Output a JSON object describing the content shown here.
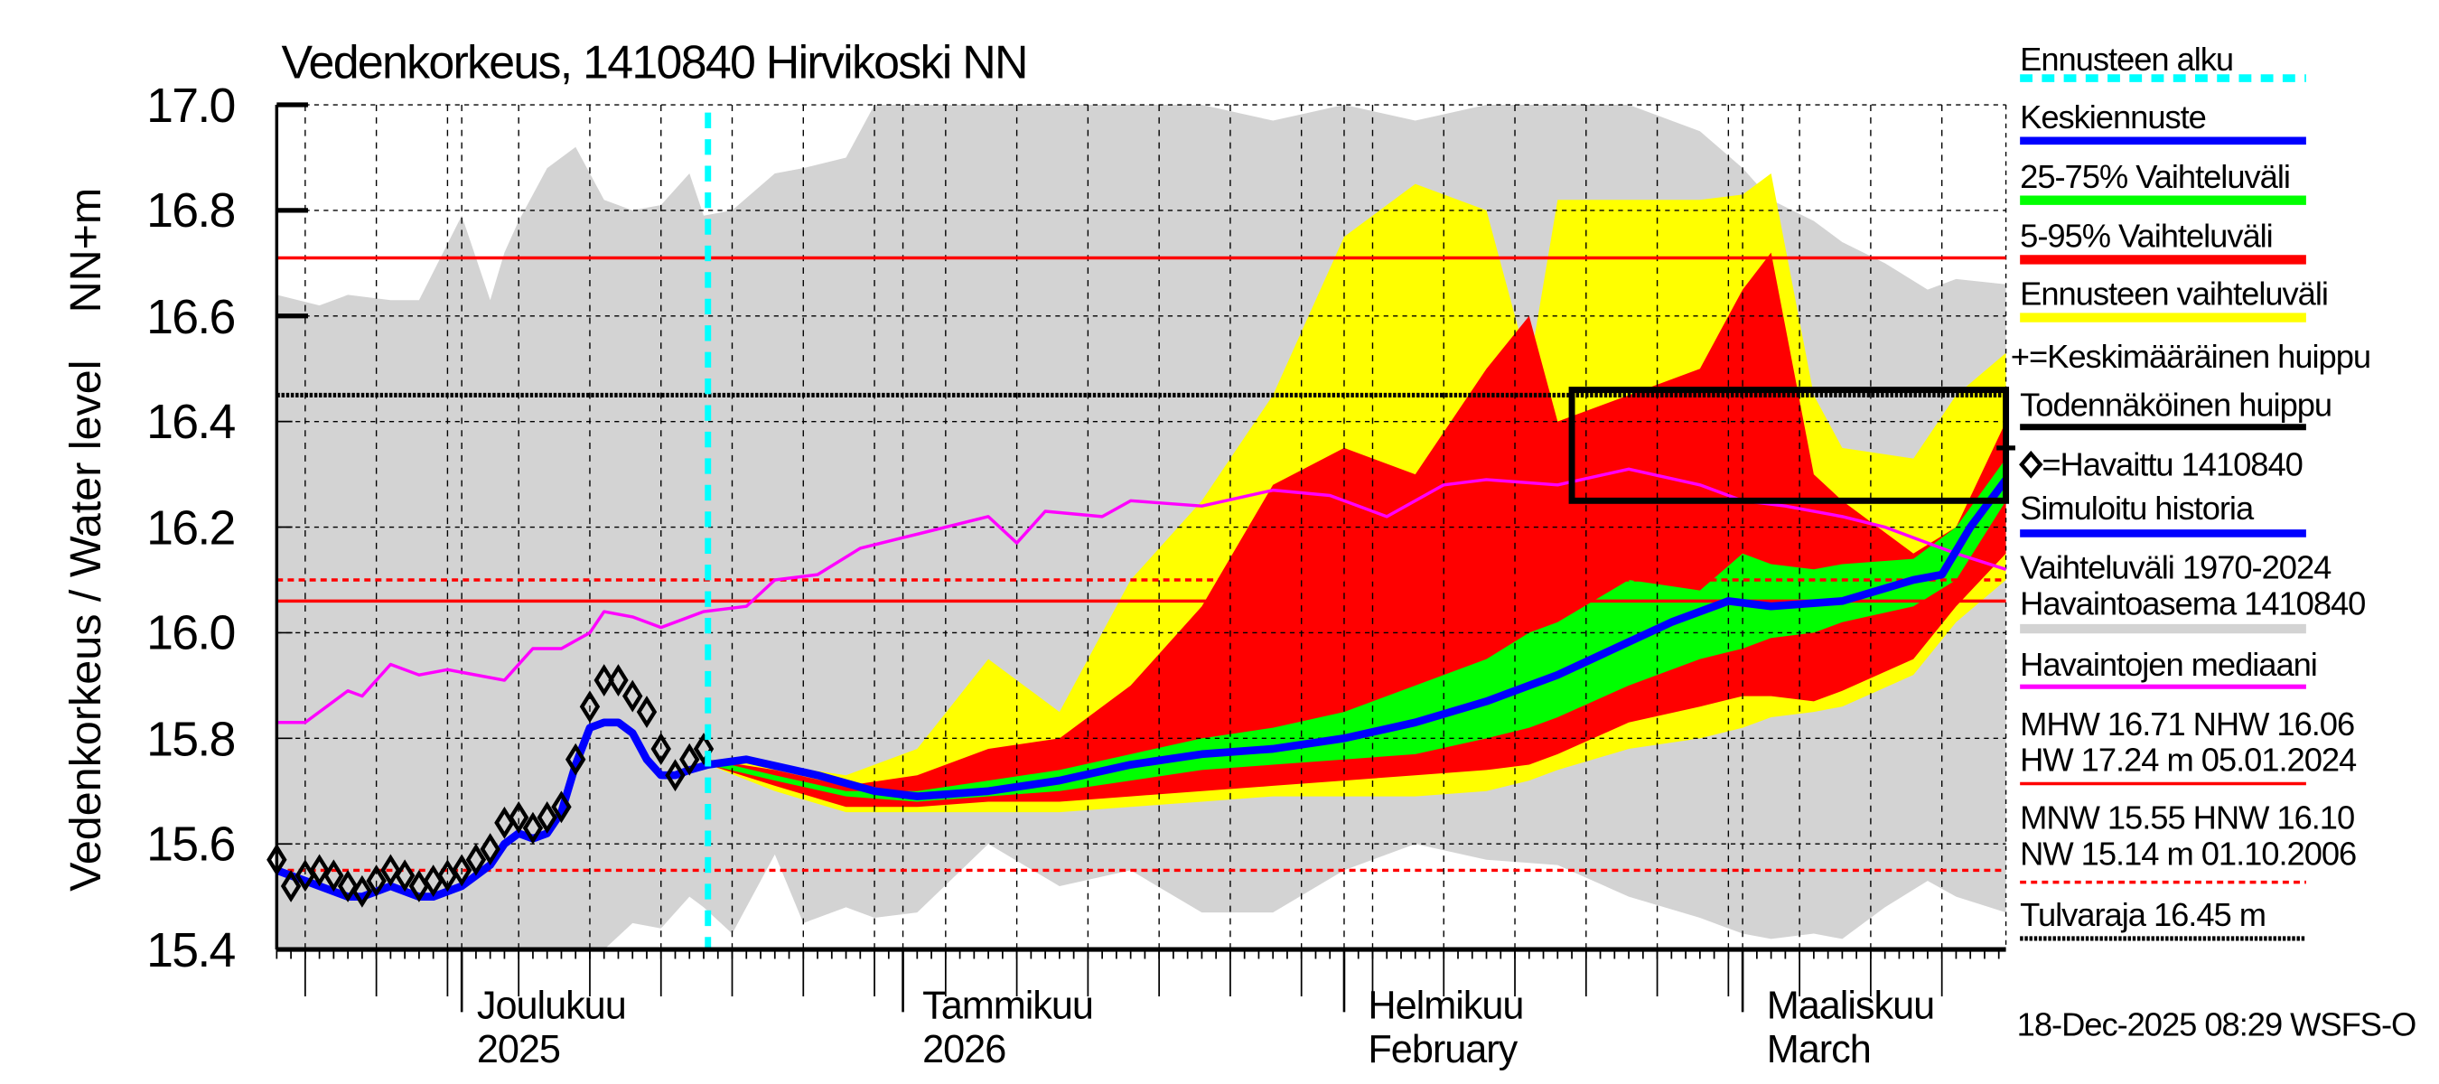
{
  "chart_data": {
    "type": "area",
    "title": "Vedenkorkeus, 1410840 Hirvikoski NN",
    "ylabel": "Vedenkorkeus / Water level",
    "yunit": "NN+m",
    "ylim": [
      15.4,
      17.0
    ],
    "y_ticks": [
      "17.0",
      "16.8",
      "16.6",
      "16.4",
      "16.2",
      "16.0",
      "15.8",
      "15.6",
      "15.4"
    ],
    "x_unit": "days since 18-Nov-2025",
    "xlim": [
      0,
      121.5
    ],
    "grid": true,
    "legend_position": "right",
    "month_labels": [
      {
        "day": 13,
        "line1": "Joulukuu",
        "line2": "2025"
      },
      {
        "day": 44,
        "line1": "Tammikuu",
        "line2": "2026"
      },
      {
        "day": 75,
        "line1": "Helmikuu",
        "line2": "February"
      },
      {
        "day": 103,
        "line1": "Maaliskuu",
        "line2": "March"
      }
    ],
    "forecast_start_day": 30.3,
    "legend": {
      "forecast_start": "Ennusteen alku",
      "median_forecast": "Keskiennuste",
      "p25_75": "25-75% Vaihteluväli",
      "p5_95": "5-95% Vaihteluväli",
      "forecast_range": "Ennusteen vaihteluväli",
      "mean_peak": "+=Keskimääräinen huippu",
      "likely_peak": "Todennäköinen huippu",
      "observed": "=Havaittu 1410840",
      "simulated": "Simuloitu historia",
      "hist_range_1": "Vaihteluväli 1970-2024",
      "hist_range_2": "Havaintoasema 1410840",
      "obs_median": "Havaintojen mediaani",
      "mhw_line": "MHW  16.71 NHW  16.06",
      "hw_line": "HW  17.24 m 05.01.2024",
      "mnw_line": "MNW  15.55 HNW  16.10",
      "nw_line": "NW  15.14 m 01.10.2006",
      "flood_limit": "Tulvaraja 16.45 m"
    },
    "reference_levels": {
      "MHW": 16.71,
      "NHW": 16.06,
      "HNW": 16.1,
      "MNW": 15.55,
      "HW": 17.24,
      "NW": 15.14,
      "Tulvaraja": 16.45
    },
    "likely_peak_box": {
      "day_from": 91,
      "day_to": 121.5,
      "low": 16.25,
      "high": 16.46
    },
    "mean_peak": {
      "day": 121.5,
      "value": 16.35
    },
    "hist_range": {
      "days": [
        0,
        3,
        5,
        8,
        10,
        13,
        15,
        16,
        17,
        19,
        21,
        23,
        25,
        27,
        29,
        30,
        32,
        35,
        37,
        40,
        42,
        45,
        50,
        55,
        60,
        65,
        70,
        75,
        80,
        85,
        90,
        95,
        100,
        103,
        105,
        108,
        110,
        113,
        116,
        118,
        121.5
      ],
      "upper": [
        16.64,
        16.62,
        16.64,
        16.63,
        16.63,
        16.79,
        16.63,
        16.72,
        16.78,
        16.88,
        16.92,
        16.82,
        16.8,
        16.81,
        16.87,
        16.79,
        16.8,
        16.87,
        16.88,
        16.9,
        17.0,
        17.0,
        17.0,
        17.0,
        17.0,
        17.0,
        16.97,
        17.0,
        16.97,
        17.0,
        17.0,
        17.0,
        16.95,
        16.88,
        16.82,
        16.78,
        16.74,
        16.7,
        16.65,
        16.67,
        16.66
      ],
      "lower": [
        15.4,
        15.4,
        15.4,
        15.4,
        15.4,
        15.4,
        15.4,
        15.4,
        15.4,
        15.4,
        15.4,
        15.4,
        15.45,
        15.44,
        15.5,
        15.48,
        15.43,
        15.58,
        15.45,
        15.48,
        15.46,
        15.47,
        15.6,
        15.52,
        15.55,
        15.47,
        15.47,
        15.55,
        15.6,
        15.57,
        15.56,
        15.5,
        15.46,
        15.43,
        15.42,
        15.43,
        15.42,
        15.48,
        15.53,
        15.5,
        15.47
      ]
    },
    "forecast_bands": {
      "days": [
        30.3,
        35,
        40,
        45,
        50,
        55,
        60,
        65,
        70,
        75,
        80,
        85,
        88,
        90,
        95,
        100,
        103,
        105,
        108,
        110,
        115,
        118,
        121.5
      ],
      "yellow_upper": [
        15.76,
        15.75,
        15.73,
        15.78,
        15.95,
        15.85,
        16.1,
        16.25,
        16.45,
        16.75,
        16.85,
        16.8,
        16.5,
        16.82,
        16.82,
        16.82,
        16.83,
        16.87,
        16.45,
        16.35,
        16.33,
        16.45,
        16.53
      ],
      "red_upper": [
        15.76,
        15.74,
        15.71,
        15.73,
        15.78,
        15.8,
        15.9,
        16.05,
        16.28,
        16.35,
        16.3,
        16.5,
        16.6,
        16.4,
        16.45,
        16.5,
        16.65,
        16.72,
        16.3,
        16.25,
        16.15,
        16.2,
        16.4
      ],
      "green_upper": [
        15.76,
        15.73,
        15.7,
        15.7,
        15.72,
        15.74,
        15.77,
        15.8,
        15.82,
        15.85,
        15.9,
        15.95,
        16.0,
        16.02,
        16.1,
        16.08,
        16.15,
        16.13,
        16.12,
        16.13,
        16.14,
        16.2,
        16.33
      ],
      "green_lower": [
        15.75,
        15.72,
        15.69,
        15.68,
        15.69,
        15.7,
        15.72,
        15.74,
        15.75,
        15.76,
        15.77,
        15.8,
        15.82,
        15.84,
        15.9,
        15.95,
        15.97,
        15.99,
        16.0,
        16.02,
        16.05,
        16.1,
        16.25
      ],
      "red_lower": [
        15.75,
        15.71,
        15.67,
        15.67,
        15.68,
        15.68,
        15.69,
        15.7,
        15.71,
        15.72,
        15.73,
        15.74,
        15.75,
        15.77,
        15.83,
        15.86,
        15.88,
        15.88,
        15.87,
        15.89,
        15.95,
        16.05,
        16.15
      ],
      "yellow_lower": [
        15.75,
        15.7,
        15.66,
        15.66,
        15.66,
        15.66,
        15.67,
        15.68,
        15.69,
        15.69,
        15.69,
        15.7,
        15.72,
        15.74,
        15.78,
        15.8,
        15.82,
        15.84,
        15.85,
        15.86,
        15.92,
        16.02,
        16.1
      ]
    },
    "series": [
      {
        "name": "Keskiennuste",
        "color": "#0000ff",
        "days": [
          30.3,
          33,
          38,
          42,
          45,
          50,
          55,
          60,
          65,
          70,
          75,
          80,
          85,
          90,
          94,
          98,
          102,
          105,
          110,
          115,
          117,
          119,
          121.5
        ],
        "values": [
          15.75,
          15.76,
          15.73,
          15.7,
          15.69,
          15.7,
          15.72,
          15.75,
          15.77,
          15.78,
          15.8,
          15.83,
          15.87,
          15.92,
          15.97,
          16.02,
          16.06,
          16.05,
          16.06,
          16.1,
          16.11,
          16.2,
          16.29
        ]
      },
      {
        "name": "Simuloitu historia",
        "color": "#0000ff",
        "days": [
          0,
          1,
          2,
          3,
          4,
          5,
          6,
          7,
          8,
          9,
          10,
          11,
          12,
          13,
          14,
          15,
          16,
          17,
          18,
          19,
          20,
          21,
          22,
          23,
          24,
          25,
          26,
          27,
          28,
          29,
          30.3
        ],
        "values": [
          15.55,
          15.54,
          15.53,
          15.52,
          15.51,
          15.5,
          15.5,
          15.51,
          15.52,
          15.51,
          15.5,
          15.5,
          15.51,
          15.52,
          15.54,
          15.56,
          15.6,
          15.62,
          15.61,
          15.62,
          15.66,
          15.75,
          15.82,
          15.83,
          15.83,
          15.81,
          15.76,
          15.73,
          15.73,
          15.74,
          15.75
        ]
      },
      {
        "name": "Havaintojen mediaani",
        "color": "#ff00ff",
        "days": [
          0,
          2,
          5,
          6,
          8,
          10,
          12,
          16,
          18,
          20,
          22,
          23,
          25,
          27,
          29,
          30,
          33,
          35,
          38,
          41,
          44,
          47,
          50,
          52,
          54,
          58,
          60,
          65,
          70,
          74,
          78,
          82,
          85,
          90,
          95,
          100,
          103,
          106,
          110,
          113,
          116,
          118,
          121.5
        ],
        "values": [
          15.83,
          15.83,
          15.89,
          15.88,
          15.94,
          15.92,
          15.93,
          15.91,
          15.97,
          15.97,
          16.0,
          16.04,
          16.03,
          16.01,
          16.03,
          16.04,
          16.05,
          16.1,
          16.11,
          16.16,
          16.18,
          16.2,
          16.22,
          16.17,
          16.23,
          16.22,
          16.25,
          16.24,
          16.27,
          16.26,
          16.22,
          16.28,
          16.29,
          16.28,
          16.31,
          16.28,
          16.25,
          16.24,
          16.22,
          16.2,
          16.17,
          16.15,
          16.12
        ]
      },
      {
        "name": "Havaittu 1410840",
        "marker": "diamond",
        "days": [
          0,
          1,
          2,
          3,
          4,
          5,
          6,
          7,
          8,
          9,
          10,
          11,
          12,
          13,
          14,
          15,
          16,
          17,
          18,
          19,
          20,
          21,
          22,
          23,
          24,
          25,
          26,
          27,
          28,
          29,
          30
        ],
        "values": [
          15.57,
          15.52,
          15.54,
          15.55,
          15.54,
          15.52,
          15.51,
          15.53,
          15.55,
          15.54,
          15.52,
          15.53,
          15.54,
          15.55,
          15.57,
          15.59,
          15.64,
          15.65,
          15.63,
          15.65,
          15.67,
          15.76,
          15.86,
          15.91,
          15.91,
          15.88,
          15.85,
          15.78,
          15.73,
          15.76,
          15.78
        ]
      }
    ],
    "colors": {
      "hist": "#d3d3d3",
      "yellow": "#ffff00",
      "red": "#ff0000",
      "green": "#00ff00",
      "blue": "#0000ff",
      "magenta": "#ff00ff",
      "cyan": "#00ffff"
    },
    "footer": "18-Dec-2025 08:29 WSFS-O"
  }
}
